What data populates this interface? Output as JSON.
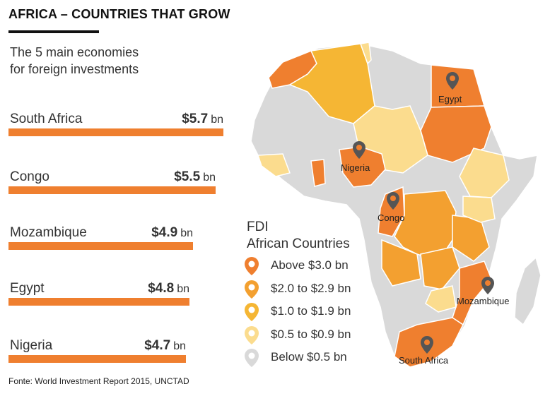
{
  "header": {
    "title": "AFRICA – COUNTRIES THAT GROW",
    "subtitle_line1": "The 5 main economies",
    "subtitle_line2": "for foreign investments"
  },
  "chart_data": {
    "type": "bar",
    "title": "The 5 main economies for foreign investments",
    "categories": [
      "South Africa",
      "Congo",
      "Mozambique",
      "Egypt",
      "Nigeria"
    ],
    "values": [
      5.7,
      5.5,
      4.9,
      4.8,
      4.7
    ],
    "value_labels": [
      "$5.7",
      "$5.5",
      "$4.9",
      "$4.8",
      "$4.7"
    ],
    "unit": "bn",
    "bar_color": "#ef7f2f"
  },
  "map": {
    "legend_title_line1": "FDI",
    "legend_title_line2": "African Countries",
    "legend": [
      {
        "label": "Above $3.0 bn",
        "color": "#ef7f2f"
      },
      {
        "label": "$2.0 to $2.9 bn",
        "color": "#f3a030"
      },
      {
        "label": "$1.0 to $1.9 bn",
        "color": "#f5b634"
      },
      {
        "label": "$0.5 to $0.9 bn",
        "color": "#fbdc8e"
      },
      {
        "label": "Below $0.5 bn",
        "color": "#d9d9d9"
      }
    ],
    "labels": {
      "egypt": "Egypt",
      "nigeria": "Nigeria",
      "congo": "Congo",
      "mozambique": "Mozambique",
      "south_africa": "South Africa"
    }
  },
  "source": "Fonte: World Investment Report 2015, UNCTAD"
}
